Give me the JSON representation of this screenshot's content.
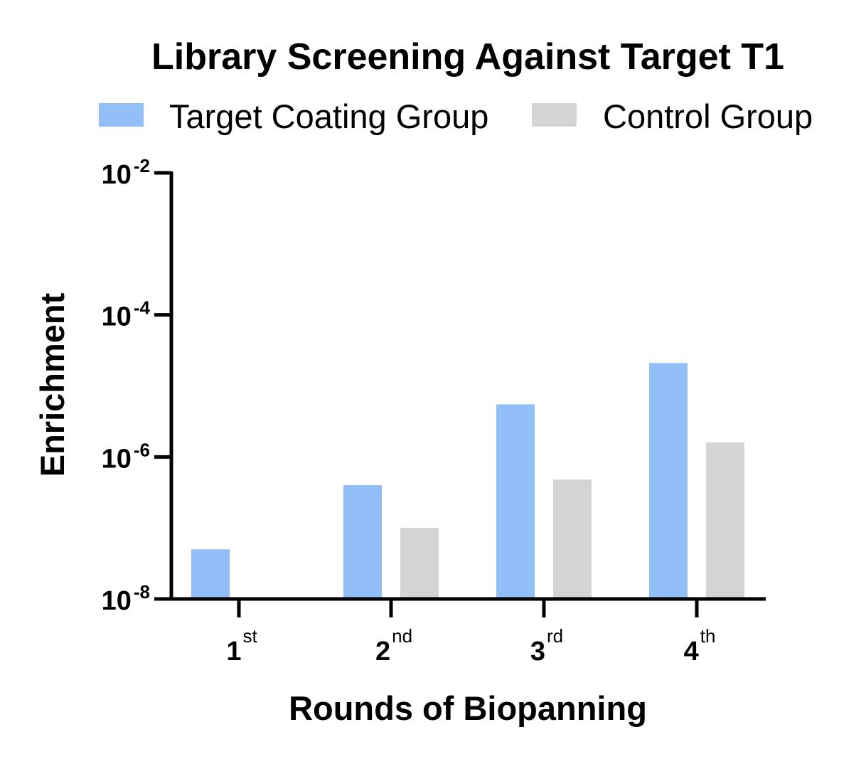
{
  "chart_data": {
    "type": "bar",
    "title": "Library Screening Against Target T1",
    "xlabel": "Rounds of Biopanning",
    "ylabel": "Enrichment",
    "yscale": "log",
    "ylim": [
      1e-08,
      0.01
    ],
    "y_ticks": [
      {
        "base": "10",
        "exp": "-8",
        "value": 1e-08
      },
      {
        "base": "10",
        "exp": "-6",
        "value": 1e-06
      },
      {
        "base": "10",
        "exp": "-4",
        "value": 0.0001
      },
      {
        "base": "10",
        "exp": "-2",
        "value": 0.01
      }
    ],
    "categories": [
      {
        "num": "1",
        "sup": "st"
      },
      {
        "num": "2",
        "sup": "nd"
      },
      {
        "num": "3",
        "sup": "rd"
      },
      {
        "num": "4",
        "sup": "th"
      }
    ],
    "series": [
      {
        "name": "Target Coating Group",
        "color": "#93bff8",
        "values": [
          5e-08,
          4e-07,
          5.5e-06,
          2.1e-05
        ]
      },
      {
        "name": "Control Group",
        "color": "#d4d4d4",
        "values": [
          null,
          1e-07,
          4.8e-07,
          1.6e-06
        ]
      }
    ],
    "legend_position": "top",
    "grid": false
  }
}
